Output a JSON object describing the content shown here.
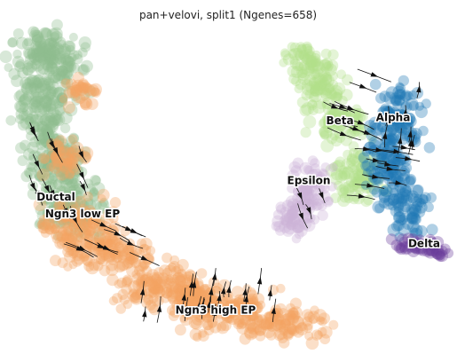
{
  "chart_data": {
    "type": "scatter",
    "title": "pan+velovi, split1 (Ngenes=658)",
    "xlabel": "",
    "ylabel": "",
    "grid": false,
    "axes_visible": false,
    "overlay": "velocity-streamlines",
    "xlim": [
      0,
      100
    ],
    "ylim": [
      0,
      100
    ],
    "clusters": [
      {
        "name": "Ductal",
        "color": "#8fbc8f",
        "label_pos": [
          11,
          47
        ],
        "blobs": [
          [
            10,
            88,
            7,
            9
          ],
          [
            8,
            74,
            5,
            11
          ],
          [
            10,
            58,
            6,
            9
          ],
          [
            14,
            45,
            7,
            8
          ],
          [
            9,
            93,
            4,
            3
          ]
        ]
      },
      {
        "name": "Ngn3 low EP",
        "color": "#f4a460",
        "label_pos": [
          17,
          42
        ],
        "blobs": [
          [
            16,
            40,
            8,
            6
          ],
          [
            22,
            32,
            9,
            6
          ],
          [
            16,
            80,
            3,
            4
          ],
          [
            13,
            60,
            4,
            5
          ]
        ]
      },
      {
        "name": "Ngn3 high EP",
        "color": "#f4a460",
        "label_pos": [
          47,
          13
        ],
        "blobs": [
          [
            35,
            22,
            9,
            6
          ],
          [
            48,
            14,
            10,
            6
          ],
          [
            62,
            10,
            9,
            5
          ],
          [
            41,
            18,
            6,
            5
          ]
        ]
      },
      {
        "name": "Beta",
        "color": "#b2df8a",
        "label_pos": [
          75,
          70
        ],
        "blobs": [
          [
            70,
            84,
            5,
            8
          ],
          [
            75,
            71,
            5,
            6
          ],
          [
            79,
            55,
            5,
            8
          ],
          [
            66,
            91,
            3,
            3
          ]
        ]
      },
      {
        "name": "Alpha",
        "color": "#1f78b4",
        "label_pos": [
          87,
          71
        ],
        "blobs": [
          [
            88,
            73,
            5,
            8
          ],
          [
            86,
            58,
            5,
            9
          ],
          [
            90,
            45,
            4,
            7
          ]
        ]
      },
      {
        "name": "Epsilon",
        "color": "#cab2d6",
        "label_pos": [
          68,
          52
        ],
        "blobs": [
          [
            68,
            50,
            4,
            8
          ],
          [
            64,
            42,
            3,
            5
          ]
        ]
      },
      {
        "name": "Delta",
        "color": "#6a3d9a",
        "label_pos": [
          94,
          33
        ],
        "blobs": [
          [
            92,
            34,
            4,
            2
          ],
          [
            96,
            32,
            3,
            2
          ]
        ]
      }
    ]
  }
}
